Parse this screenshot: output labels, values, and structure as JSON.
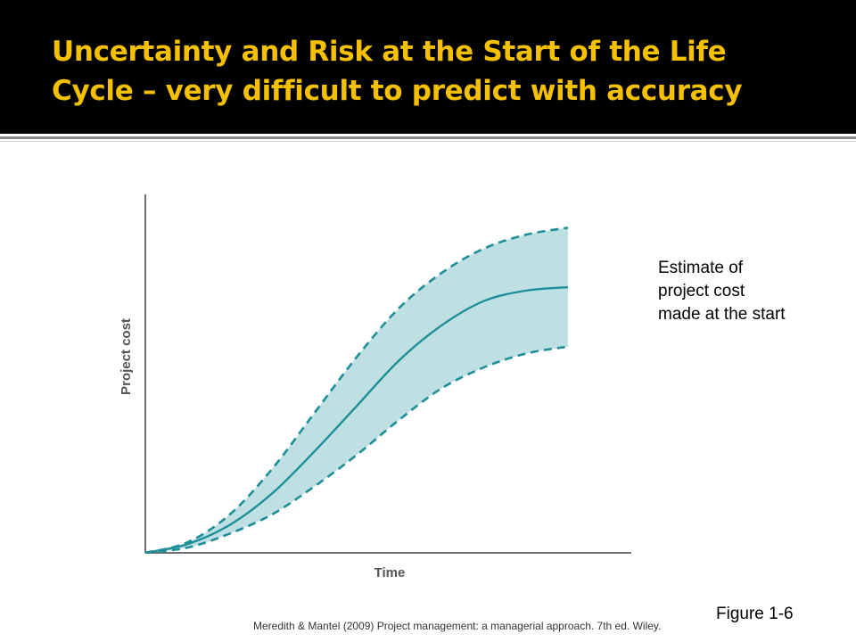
{
  "slide": {
    "title_line1": "Uncertainty and Risk at the Start of the Life",
    "title_line2": "Cycle – very difficult to predict with accuracy",
    "annotation": "Estimate of\nproject cost\nmade at the start",
    "figure_label": "Figure 1-6",
    "citation": "Meredith & Mantel (2009) Project management: a managerial approach. 7th ed. Wiley."
  },
  "colors": {
    "title": "#f5c000",
    "band_fill": "#bfe0e3",
    "curve": "#1e8e98",
    "axis": "#6e6e6e"
  },
  "chart_data": {
    "type": "area",
    "xlabel": "Time",
    "ylabel": "Project cost",
    "xlim": [
      0,
      1
    ],
    "ylim": [
      0,
      1
    ],
    "grid": false,
    "x": [
      0,
      0.1,
      0.2,
      0.3,
      0.4,
      0.5,
      0.6,
      0.7,
      0.8,
      0.9,
      1.0
    ],
    "series": [
      {
        "style": "dashed",
        "values": [
          0,
          0.03,
          0.11,
          0.24,
          0.4,
          0.56,
          0.7,
          0.8,
          0.87,
          0.91,
          0.93
        ]
      },
      {
        "style": "solid",
        "values": [
          0,
          0.025,
          0.08,
          0.17,
          0.29,
          0.42,
          0.55,
          0.65,
          0.72,
          0.75,
          0.76
        ]
      },
      {
        "style": "dashed",
        "values": [
          0,
          0.015,
          0.055,
          0.11,
          0.19,
          0.28,
          0.38,
          0.47,
          0.53,
          0.57,
          0.59
        ]
      }
    ]
  }
}
